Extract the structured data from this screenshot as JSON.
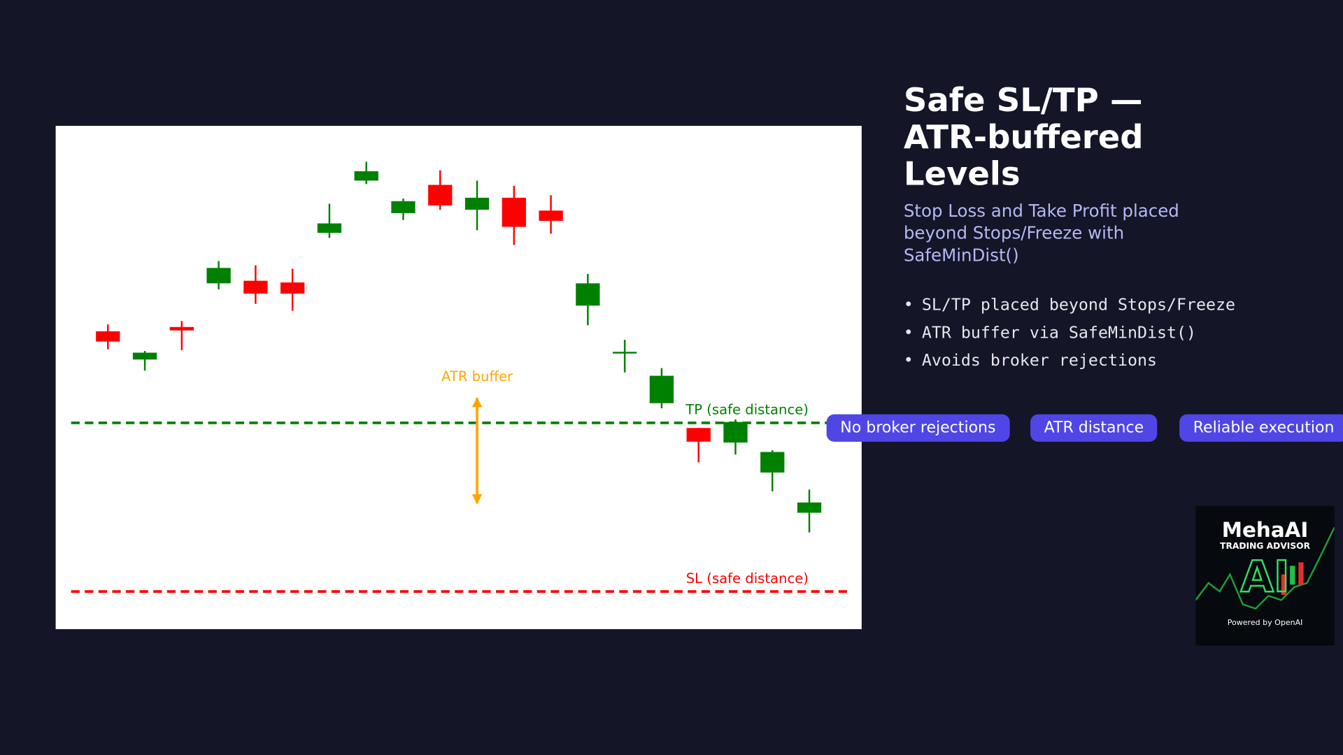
{
  "chart_data": {
    "type": "candlestick",
    "series": [
      {
        "open": [
          348,
          315,
          353,
          404,
          407,
          405,
          463,
          524,
          486,
          519,
          490,
          504,
          489,
          378,
          322,
          264,
          235,
          218,
          183,
          136
        ],
        "high": [
          356,
          325,
          360,
          430,
          425,
          421,
          497,
          546,
          503,
          536,
          524,
          518,
          507,
          415,
          338,
          305,
          235,
          245,
          209,
          163
        ],
        "low": [
          327,
          302,
          326,
          397,
          380,
          372,
          457,
          520,
          478,
          490,
          466,
          449,
          462,
          355,
          300,
          258,
          195,
          204,
          161,
          113
        ],
        "close": [
          336,
          323,
          349,
          422,
          392,
          392,
          474,
          535,
          500,
          495,
          504,
          470,
          477,
          404,
          324,
          296,
          219,
          242,
          207,
          148
        ]
      }
    ],
    "up_color": "#008000",
    "down_color": "#ff0000",
    "ylim": [
      0,
      588
    ],
    "levels": [
      {
        "label": "TP (safe distance)",
        "value": 241,
        "color": "#008000"
      },
      {
        "label": "SL (safe distance)",
        "value": 44,
        "color": "#ff0000"
      }
    ],
    "annotation": {
      "text": "ATR buffer",
      "from": 270,
      "to": 147,
      "color": "#ffa500"
    }
  },
  "panel": {
    "title": "Safe SL/TP — ATR-buffered Levels",
    "subtitle": "Stop Loss and Take Profit placed beyond Stops/Freeze with SafeMinDist()",
    "bullets": [
      "SL/TP placed beyond Stops/Freeze",
      "ATR buffer via SafeMinDist()",
      "Avoids broker rejections"
    ],
    "chips": [
      "No broker rejections",
      "ATR distance",
      "Reliable execution"
    ]
  },
  "logo": {
    "name": "MehaAI",
    "tagline": "TRADING ADVISOR",
    "mark": "AI",
    "footer": "Powered by OpenAI"
  }
}
